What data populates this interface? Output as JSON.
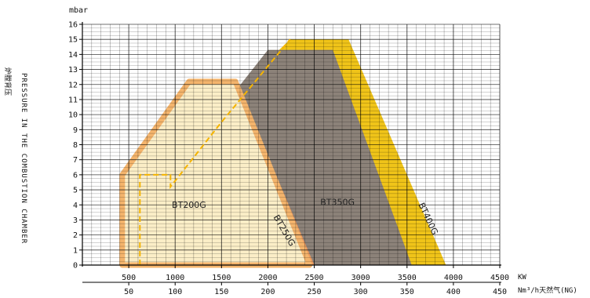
{
  "chart_data": {
    "type": "area",
    "title": "",
    "y_unit_label": "mbar",
    "ylabel_en": "PRESSURE IN THE COMBUSTION CHAMBER",
    "ylabel_cn": "炉膛背压",
    "xlabel_kw": "KW",
    "xlabel_gas": "Nm³/h天然气(NG)",
    "ylim": [
      0,
      16
    ],
    "xlim_kw": [
      0,
      4500
    ],
    "y_ticks": [
      0,
      1,
      2,
      3,
      4,
      5,
      6,
      7,
      8,
      9,
      10,
      11,
      12,
      13,
      14,
      15,
      16
    ],
    "x_ticks_kw": [
      500,
      1000,
      1500,
      2000,
      2500,
      3000,
      3500,
      4000,
      4500
    ],
    "x_ticks_gas": [
      50,
      100,
      150,
      200,
      250,
      300,
      350,
      400,
      450
    ],
    "grid": true,
    "series": [
      {
        "name": "BT400G",
        "color": "#f0c419",
        "points": [
          [
            1900,
            0
          ],
          [
            1900,
            13
          ],
          [
            2240,
            15
          ],
          [
            2870,
            15
          ],
          [
            3920,
            0
          ]
        ],
        "label_pos": [
          3700,
          3.0
        ],
        "label_rotate": 65
      },
      {
        "name": "BT350G",
        "color": "#8c8279",
        "points": [
          [
            1450,
            0
          ],
          [
            1450,
            10
          ],
          [
            2000,
            14.3
          ],
          [
            2700,
            14.3
          ],
          [
            3550,
            0
          ]
        ],
        "label_pos": [
          2750,
          4.0
        ],
        "label_rotate": 0
      },
      {
        "name": "BT250G",
        "color": "#eb9a5e",
        "points": [
          [
            1950,
            0
          ],
          [
            1950,
            8
          ],
          [
            2500,
            0
          ]
        ],
        "label_pos": [
          2150,
          2.2
        ],
        "label_rotate": 60
      },
      {
        "name": "BT200G",
        "color": "#fbeec7",
        "edge_color": "#f4b46c",
        "points": [
          [
            430,
            0
          ],
          [
            430,
            6
          ],
          [
            1150,
            12.2
          ],
          [
            1650,
            12.2
          ],
          [
            2450,
            0
          ]
        ],
        "label_pos": [
          1150,
          3.8
        ],
        "label_rotate": 0
      }
    ],
    "dashed_line": {
      "color": "#f5b400",
      "points": [
        [
          620,
          0
        ],
        [
          620,
          6
        ],
        [
          950,
          6
        ],
        [
          950,
          5.2
        ],
        [
          1500,
          9.5
        ],
        [
          2240,
          15
        ]
      ]
    }
  }
}
